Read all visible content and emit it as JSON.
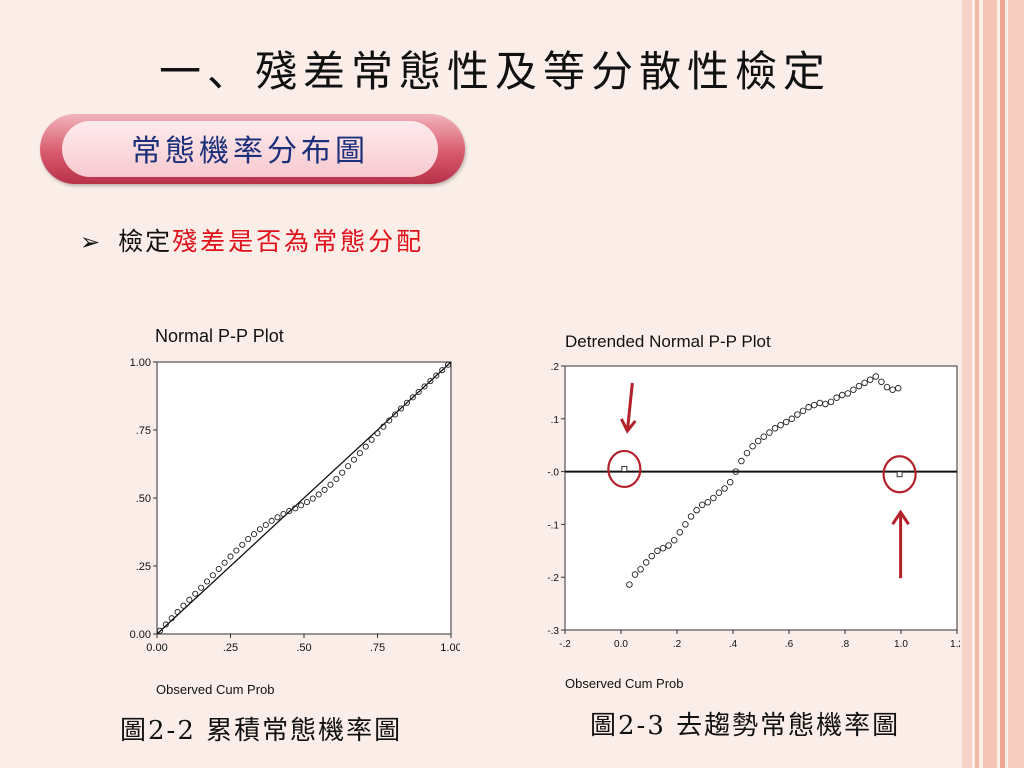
{
  "slide": {
    "title": "一、殘差常態性及等分散性檢定",
    "section_label": "常態機率分布圖",
    "bullet_prefix": "檢定",
    "bullet_highlight": "殘差是否為常態分配",
    "caption_left": "圖2-2 累積常態機率圖",
    "caption_right": "圖2-3 去趨勢常態機率圖"
  },
  "chart_data": [
    {
      "type": "scatter",
      "title": "Normal P-P Plot",
      "xlabel": "Observed Cum Prob",
      "ylabel": "",
      "xlim": [
        0,
        1
      ],
      "ylim": [
        0,
        1
      ],
      "x_ticks": [
        "0.00",
        ".25",
        ".50",
        ".75",
        "1.00"
      ],
      "y_ticks": [
        "0.00",
        ".25",
        ".50",
        ".75",
        "1.00"
      ],
      "reference_line": {
        "from": [
          0,
          0
        ],
        "to": [
          1,
          1
        ]
      },
      "series": [
        {
          "x": [
            0.01,
            0.03,
            0.05,
            0.07,
            0.09,
            0.11,
            0.13,
            0.15,
            0.17,
            0.19,
            0.21,
            0.23,
            0.25,
            0.27,
            0.29,
            0.31,
            0.33,
            0.35,
            0.37,
            0.39,
            0.41,
            0.43,
            0.45,
            0.47,
            0.49,
            0.51,
            0.53,
            0.55,
            0.57,
            0.59,
            0.61,
            0.63,
            0.65,
            0.67,
            0.69,
            0.71,
            0.73,
            0.75,
            0.77,
            0.79,
            0.81,
            0.83,
            0.85,
            0.87,
            0.89,
            0.91,
            0.93,
            0.95,
            0.97,
            0.99
          ],
          "y": [
            0.012,
            0.035,
            0.058,
            0.081,
            0.104,
            0.126,
            0.148,
            0.17,
            0.193,
            0.216,
            0.239,
            0.262,
            0.285,
            0.307,
            0.328,
            0.349,
            0.367,
            0.385,
            0.401,
            0.416,
            0.429,
            0.441,
            0.452,
            0.462,
            0.473,
            0.485,
            0.498,
            0.513,
            0.53,
            0.549,
            0.57,
            0.593,
            0.617,
            0.641,
            0.665,
            0.689,
            0.714,
            0.738,
            0.762,
            0.785,
            0.807,
            0.829,
            0.85,
            0.87,
            0.89,
            0.91,
            0.93,
            0.95,
            0.97,
            0.99
          ]
        }
      ]
    },
    {
      "type": "scatter",
      "title": "Detrended Normal P-P Plot",
      "xlabel": "Observed Cum Prob",
      "ylabel": "",
      "xlim": [
        -0.2,
        1.2
      ],
      "ylim": [
        -0.3,
        0.2
      ],
      "x_ticks": [
        "-.2",
        "0.0",
        ".2",
        ".4",
        ".6",
        ".8",
        "1.0",
        "1.2"
      ],
      "y_ticks": [
        ".2",
        ".1",
        "-.0",
        "-.1",
        "-.2",
        "-.3"
      ],
      "reference_line": {
        "y": 0
      },
      "series": [
        {
          "x": [
            0.012,
            0.03,
            0.05,
            0.07,
            0.09,
            0.11,
            0.13,
            0.15,
            0.17,
            0.19,
            0.21,
            0.23,
            0.25,
            0.27,
            0.29,
            0.31,
            0.33,
            0.35,
            0.37,
            0.39,
            0.41,
            0.43,
            0.45,
            0.47,
            0.49,
            0.51,
            0.53,
            0.55,
            0.57,
            0.59,
            0.61,
            0.63,
            0.65,
            0.67,
            0.69,
            0.71,
            0.73,
            0.75,
            0.77,
            0.79,
            0.81,
            0.83,
            0.85,
            0.87,
            0.89,
            0.91,
            0.93,
            0.95,
            0.97,
            0.99,
            0.995
          ],
          "y": [
            0.005,
            -0.214,
            -0.195,
            -0.185,
            -0.172,
            -0.16,
            -0.15,
            -0.145,
            -0.14,
            -0.13,
            -0.115,
            -0.1,
            -0.085,
            -0.073,
            -0.063,
            -0.058,
            -0.05,
            -0.04,
            -0.032,
            -0.02,
            0.0,
            0.02,
            0.035,
            0.048,
            0.058,
            0.066,
            0.074,
            0.082,
            0.088,
            0.094,
            0.1,
            0.108,
            0.115,
            0.122,
            0.126,
            0.13,
            0.128,
            0.132,
            0.14,
            0.145,
            0.148,
            0.155,
            0.162,
            0.168,
            0.174,
            0.18,
            0.17,
            0.16,
            0.155,
            0.158,
            -0.005
          ]
        }
      ]
    }
  ]
}
